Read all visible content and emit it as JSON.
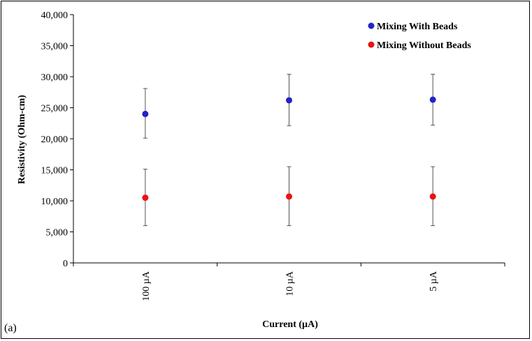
{
  "chart_data": {
    "type": "scatter",
    "categories": [
      "100 µA",
      "10 µA",
      "5 µA"
    ],
    "xlabel": "Current (µA)",
    "ylabel": "Resistivity (Ohm-cm)",
    "ylim": [
      0,
      40000
    ],
    "yticks": [
      0,
      5000,
      10000,
      15000,
      20000,
      25000,
      30000,
      35000,
      40000
    ],
    "ytick_labels": [
      "0",
      "5,000",
      "10,000",
      "15,000",
      "20,000",
      "25,000",
      "30,000",
      "35,000",
      "40,000"
    ],
    "grid": false,
    "legend_position": "top-right",
    "series": [
      {
        "name": "Mixing With Beads",
        "color": "#2222cc",
        "values": [
          24000,
          26200,
          26300
        ],
        "error_low": [
          20100,
          22100,
          22200
        ],
        "error_high": [
          28100,
          30400,
          30400
        ]
      },
      {
        "name": "Mixing Without Beads",
        "color": "#ee1111",
        "values": [
          10500,
          10700,
          10700
        ],
        "error_low": [
          6000,
          6000,
          6000
        ],
        "error_high": [
          15100,
          15500,
          15500
        ]
      }
    ]
  },
  "panel_label": "(a)"
}
